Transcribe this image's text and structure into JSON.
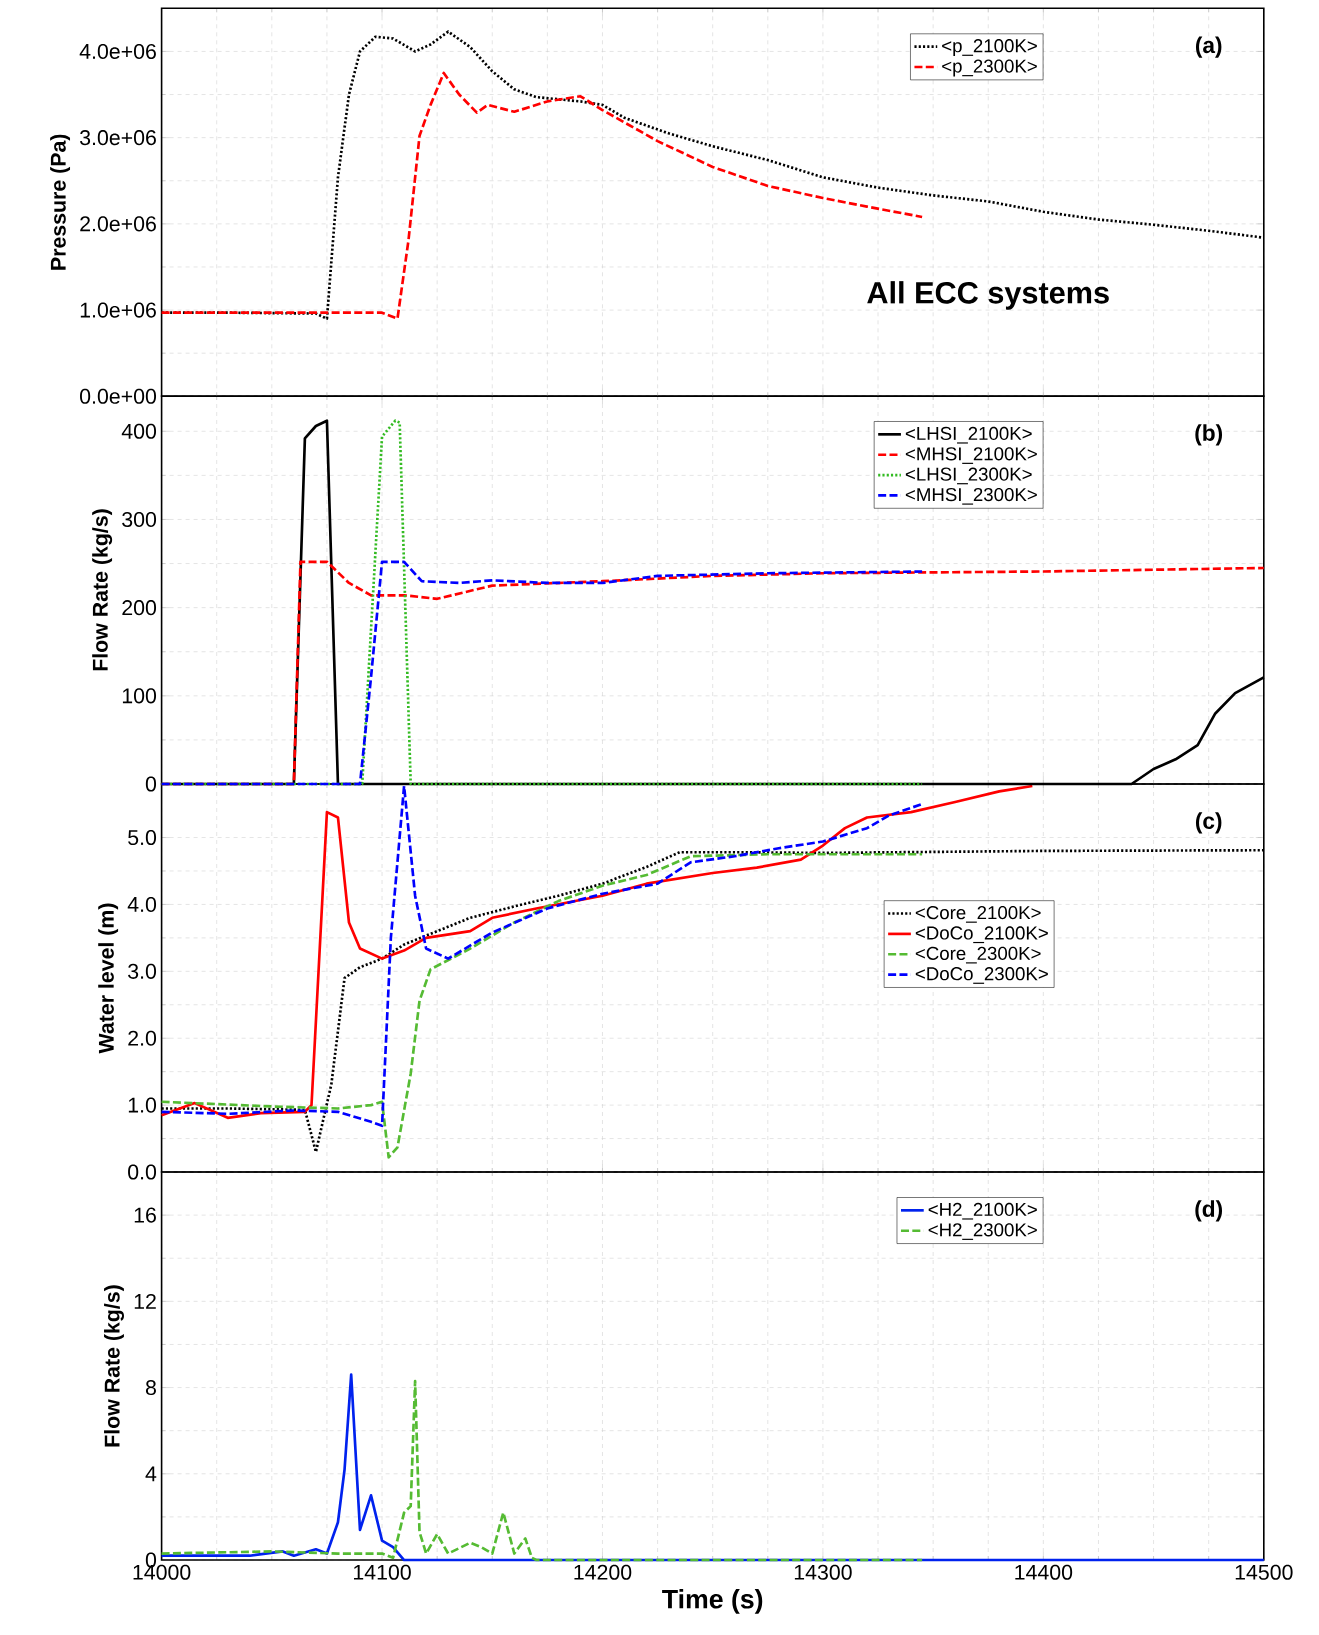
{
  "chart_data": [
    {
      "type": "line",
      "ylabel": "Pressure (Pa)",
      "annotations": [
        "(a)",
        "All ECC systems"
      ],
      "xlim": [
        14000,
        14500
      ],
      "xticks": [
        14000,
        14100,
        14200,
        14300,
        14400,
        14500
      ],
      "ylim": [
        0,
        4500000
      ],
      "yticks": [
        {
          "value": 0,
          "label": "0.0e+00"
        },
        {
          "value": 1000000,
          "label": "1.0e+06"
        },
        {
          "value": 2000000,
          "label": "2.0e+06"
        },
        {
          "value": 3000000,
          "label": "3.0e+06"
        },
        {
          "value": 4000000,
          "label": "4.0e+06"
        }
      ],
      "tick_labels": "y",
      "grid": true,
      "legend": "top right",
      "series": [
        {
          "name": "<p_2100K>",
          "color": "#000000",
          "line_style": "dotted",
          "x": [
            14000,
            14030,
            14070,
            14075,
            14080,
            14085,
            14090,
            14097,
            14105,
            14115,
            14122,
            14130,
            14140,
            14150,
            14160,
            14170,
            14190,
            14200,
            14210,
            14230,
            14250,
            14275,
            14300,
            14325,
            14350,
            14375,
            14400,
            14425,
            14450,
            14475,
            14500
          ],
          "values": [
            970000,
            970000,
            960000,
            900000,
            2540000,
            3500000,
            4000000,
            4170000,
            4150000,
            4000000,
            4080000,
            4230000,
            4050000,
            3770000,
            3560000,
            3470000,
            3420000,
            3380000,
            3230000,
            3050000,
            2900000,
            2740000,
            2540000,
            2420000,
            2330000,
            2260000,
            2140000,
            2050000,
            1990000,
            1920000,
            1840000
          ]
        },
        {
          "name": "<p_2300K>",
          "color": "#ff0000",
          "line_style": "dashed",
          "x": [
            14000,
            14050,
            14100,
            14107,
            14112,
            14117,
            14122,
            14128,
            14135,
            14143,
            14148,
            14160,
            14175,
            14190,
            14200,
            14225,
            14250,
            14275,
            14300,
            14320,
            14345
          ],
          "values": [
            970000,
            970000,
            970000,
            900000,
            1810000,
            3020000,
            3380000,
            3750000,
            3500000,
            3290000,
            3380000,
            3300000,
            3420000,
            3480000,
            3320000,
            2960000,
            2660000,
            2440000,
            2300000,
            2200000,
            2080000
          ]
        }
      ]
    },
    {
      "type": "line",
      "ylabel": "Flow Rate (kg/s)",
      "annotations": [
        "(b)"
      ],
      "xlim": [
        14000,
        14500
      ],
      "xticks": [
        14000,
        14100,
        14200,
        14300,
        14400,
        14500
      ],
      "ylim": [
        0,
        440
      ],
      "yticks": [
        0,
        100,
        200,
        300,
        400
      ],
      "tick_labels": "y",
      "grid": true,
      "legend": "top right",
      "series": [
        {
          "name": "<LHSI_2100K>",
          "color": "#000000",
          "line_style": "solid",
          "x": [
            14000,
            14060,
            14065,
            14070,
            14075,
            14080,
            14440,
            14450,
            14460,
            14470,
            14478,
            14487,
            14500
          ],
          "values": [
            0,
            0,
            392,
            406,
            412,
            0,
            0,
            17,
            28,
            44,
            80,
            103,
            121
          ]
        },
        {
          "name": "<MHSI_2100K>",
          "color": "#ff0000",
          "line_style": "dashed",
          "x": [
            14000,
            14060,
            14063,
            14075,
            14085,
            14095,
            14110,
            14125,
            14150,
            14200,
            14250,
            14300,
            14400,
            14500
          ],
          "values": [
            0,
            0,
            252,
            252,
            228,
            214,
            214,
            210,
            225,
            230,
            236,
            239,
            241,
            245
          ]
        },
        {
          "name": "<LHSI_2300K>",
          "color": "#33bb22",
          "line_style": "dotted",
          "x": [
            14000,
            14091,
            14100,
            14106,
            14108,
            14113,
            14345
          ],
          "values": [
            0,
            0,
            394,
            412,
            410,
            0,
            0
          ]
        },
        {
          "name": "<MHSI_2300K>",
          "color": "#0000ff",
          "line_style": "dashed",
          "x": [
            14000,
            14090,
            14095,
            14100,
            14110,
            14118,
            14135,
            14150,
            14175,
            14200,
            14225,
            14275,
            14345
          ],
          "values": [
            0,
            0,
            121,
            252,
            252,
            230,
            228,
            231,
            228,
            228,
            236,
            239,
            241
          ]
        }
      ]
    },
    {
      "type": "line",
      "ylabel": "Water level (m)",
      "annotations": [
        "(c)"
      ],
      "xlim": [
        14000,
        14500
      ],
      "xticks": [
        14000,
        14100,
        14200,
        14300,
        14400,
        14500
      ],
      "ylim": [
        0,
        5.8
      ],
      "yticks": [
        {
          "value": 0,
          "label": "0.0"
        },
        {
          "value": 1,
          "label": "1.0"
        },
        {
          "value": 2,
          "label": "2.0"
        },
        {
          "value": 3,
          "label": "3.0"
        },
        {
          "value": 4,
          "label": "4.0"
        },
        {
          "value": 5,
          "label": "5.0"
        }
      ],
      "tick_labels": "y",
      "grid": true,
      "legend": "right",
      "series": [
        {
          "name": "<Core_2100K>",
          "color": "#000000",
          "line_style": "dotted",
          "x": [
            14000,
            14030,
            14065,
            14070,
            14077,
            14083,
            14090,
            14100,
            14110,
            14125,
            14140,
            14160,
            14180,
            14200,
            14220,
            14235,
            14260,
            14300,
            14400,
            14500
          ],
          "values": [
            0.95,
            0.95,
            0.93,
            0.3,
            1.31,
            2.9,
            3.06,
            3.19,
            3.4,
            3.6,
            3.8,
            3.97,
            4.13,
            4.31,
            4.56,
            4.78,
            4.78,
            4.77,
            4.8,
            4.81
          ]
        },
        {
          "name": "<DoCo_2100K>",
          "color": "#ff0000",
          "line_style": "solid",
          "x": [
            14000,
            14015,
            14030,
            14045,
            14065,
            14068,
            14075,
            14080,
            14085,
            14090,
            14100,
            14110,
            14120,
            14140,
            14150,
            14170,
            14200,
            14220,
            14250,
            14270,
            14290,
            14300,
            14310,
            14320,
            14340,
            14360,
            14380,
            14395
          ],
          "values": [
            0.85,
            1.03,
            0.81,
            0.88,
            0.9,
            1.0,
            5.38,
            5.3,
            3.73,
            3.34,
            3.19,
            3.31,
            3.5,
            3.6,
            3.8,
            3.94,
            4.13,
            4.31,
            4.47,
            4.55,
            4.67,
            4.88,
            5.14,
            5.3,
            5.38,
            5.53,
            5.69,
            5.77
          ]
        },
        {
          "name": "<Core_2300K>",
          "color": "#55bb33",
          "line_style": "dashed",
          "x": [
            14000,
            14050,
            14080,
            14095,
            14100,
            14103,
            14107,
            14113,
            14117,
            14122,
            14140,
            14160,
            14180,
            14200,
            14220,
            14240,
            14275,
            14345
          ],
          "values": [
            1.05,
            0.98,
            0.95,
            1.0,
            1.05,
            0.22,
            0.37,
            1.47,
            2.56,
            3.03,
            3.34,
            3.73,
            4.05,
            4.28,
            4.44,
            4.72,
            4.75,
            4.75
          ]
        },
        {
          "name": "<DoCo_2300K>",
          "color": "#0000ff",
          "line_style": "dashed",
          "x": [
            14000,
            14030,
            14060,
            14080,
            14095,
            14100,
            14104,
            14110,
            14115,
            14120,
            14130,
            14150,
            14175,
            14200,
            14225,
            14240,
            14260,
            14280,
            14300,
            14320,
            14330,
            14345
          ],
          "values": [
            0.9,
            0.87,
            0.92,
            0.9,
            0.75,
            0.69,
            3.5,
            5.77,
            4.13,
            3.34,
            3.19,
            3.58,
            3.94,
            4.16,
            4.31,
            4.63,
            4.72,
            4.84,
            4.94,
            5.14,
            5.33,
            5.5
          ]
        }
      ]
    },
    {
      "type": "line",
      "xlabel": "Time (s)",
      "ylabel": "Flow Rate (kg/s)",
      "annotations": [
        "(d)"
      ],
      "xlim": [
        14000,
        14500
      ],
      "xticks": [
        14000,
        14100,
        14200,
        14300,
        14400,
        14500
      ],
      "ylim": [
        0,
        18
      ],
      "yticks": [
        0,
        4,
        8,
        12,
        16
      ],
      "grid": true,
      "legend": "top right",
      "series": [
        {
          "name": "<H2_2100K>",
          "color": "#0022ee",
          "line_style": "solid",
          "x": [
            14000,
            14040,
            14055,
            14060,
            14070,
            14075,
            14080,
            14083,
            14086,
            14090,
            14095,
            14100,
            14105,
            14110,
            14500
          ],
          "values": [
            0.2,
            0.2,
            0.4,
            0.2,
            0.5,
            0.3,
            1.75,
            4.2,
            8.6,
            1.4,
            3.0,
            0.9,
            0.6,
            0,
            0
          ]
        },
        {
          "name": "<H2_2300K>",
          "color": "#55bb33",
          "line_style": "dashed",
          "x": [
            14000,
            14050,
            14080,
            14100,
            14105,
            14110,
            14113,
            14115,
            14117,
            14120,
            14125,
            14130,
            14140,
            14145,
            14150,
            14155,
            14160,
            14165,
            14168,
            14170,
            14345
          ],
          "values": [
            0.3,
            0.4,
            0.3,
            0.3,
            0.1,
            2.2,
            2.5,
            8.3,
            1.3,
            0.3,
            1.2,
            0.3,
            0.8,
            0.6,
            0.3,
            2.2,
            0.3,
            1.0,
            0.1,
            0,
            0
          ]
        }
      ]
    }
  ]
}
